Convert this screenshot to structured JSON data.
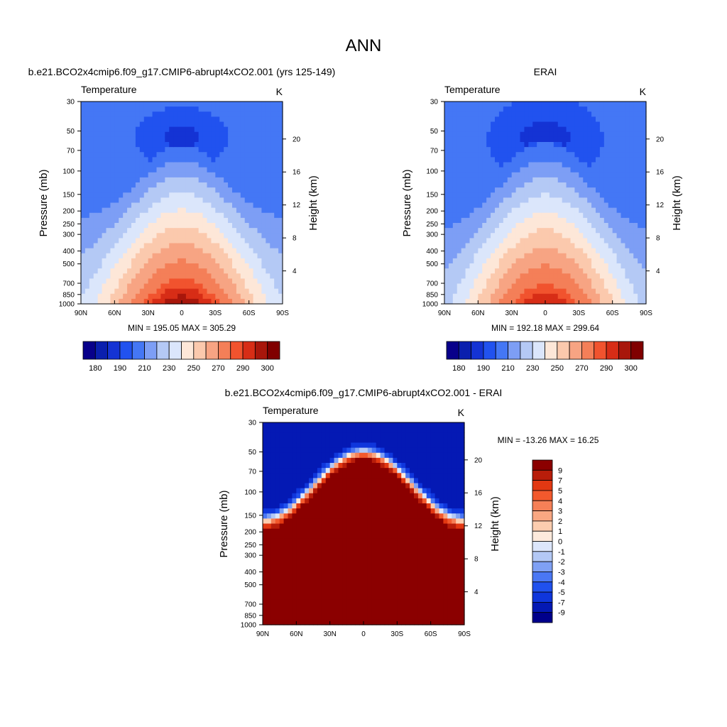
{
  "figure": {
    "title": "ANN"
  },
  "colors": {
    "abs_scale": [
      "#08008a",
      "#0a1fae",
      "#1433d4",
      "#2152ef",
      "#4477f5",
      "#7d9ef5",
      "#b4c9f5",
      "#dbe6fb",
      "#fde7d8",
      "#fbc9ad",
      "#f7a483",
      "#f47f58",
      "#f1532e",
      "#d72d16",
      "#a8160b",
      "#800000"
    ],
    "diff_scale": [
      "#00008b",
      "#0419b4",
      "#0f36dc",
      "#2051ee",
      "#4a77f4",
      "#7fa0f4",
      "#b3c8f5",
      "#dce6fb",
      "#fdeadc",
      "#fccdaf",
      "#f9a782",
      "#f68057",
      "#f3592d",
      "#e23812",
      "#b81d0a",
      "#8b0000"
    ]
  },
  "chart_data": [
    {
      "type": "heatmap",
      "panel": "model",
      "title": "b.e21.BCO2x4cmip6.f09_g17.CMIP6-abrupt4xCO2.001 (yrs 125-149)",
      "subtitle_left": "Temperature",
      "subtitle_right": "K",
      "ylabel": "Pressure (mb)",
      "ylabel_right": "Height (km)",
      "x_ticks": [
        "90N",
        "60N",
        "30N",
        "0",
        "30S",
        "60S",
        "90S"
      ],
      "x_range": [
        90,
        -90
      ],
      "y_ticks": [
        "30",
        "50",
        "70",
        "100",
        "150",
        "200",
        "250",
        "300",
        "400",
        "500",
        "700",
        "850",
        "1000"
      ],
      "y_ticks_right": [
        "20",
        "16",
        "12",
        "8",
        "4"
      ],
      "y_range": [
        1000,
        30
      ],
      "stats": "MIN = 195.05  MAX = 305.29",
      "min": 195.05,
      "max": 305.29,
      "colorbar_labels": [
        "180",
        "190",
        "210",
        "230",
        "250",
        "270",
        "290",
        "300"
      ]
    },
    {
      "type": "heatmap",
      "panel": "obs",
      "title": "ERAI",
      "subtitle_left": "Temperature",
      "subtitle_right": "K",
      "ylabel": "Pressure (mb)",
      "ylabel_right": "Height (km)",
      "x_ticks": [
        "90N",
        "60N",
        "30N",
        "0",
        "30S",
        "60S",
        "90S"
      ],
      "x_range": [
        90,
        -90
      ],
      "y_ticks": [
        "30",
        "50",
        "70",
        "100",
        "150",
        "200",
        "250",
        "300",
        "400",
        "500",
        "700",
        "850",
        "1000"
      ],
      "y_ticks_right": [
        "20",
        "16",
        "12",
        "8",
        "4"
      ],
      "y_range": [
        1000,
        30
      ],
      "stats": "MIN = 192.18  MAX = 299.64",
      "min": 192.18,
      "max": 299.64,
      "colorbar_labels": [
        "180",
        "190",
        "210",
        "230",
        "250",
        "270",
        "290",
        "300"
      ]
    },
    {
      "type": "heatmap",
      "panel": "diff",
      "title": "b.e21.BCO2x4cmip6.f09_g17.CMIP6-abrupt4xCO2.001 - ERAI",
      "subtitle_left": "Temperature",
      "subtitle_right": "K",
      "ylabel": "Pressure (mb)",
      "ylabel_right": "Height (km)",
      "x_ticks": [
        "90N",
        "60N",
        "30N",
        "0",
        "30S",
        "60S",
        "90S"
      ],
      "x_range": [
        90,
        -90
      ],
      "y_ticks": [
        "30",
        "50",
        "70",
        "100",
        "150",
        "200",
        "250",
        "300",
        "400",
        "500",
        "700",
        "850",
        "1000"
      ],
      "y_ticks_right": [
        "20",
        "16",
        "12",
        "8",
        "4"
      ],
      "y_range": [
        1000,
        30
      ],
      "stats": "MIN = -13.26  MAX =  16.25",
      "min": -13.26,
      "max": 16.25,
      "colorbar_labels": [
        "9",
        "7",
        "5",
        "4",
        "3",
        "2",
        "1",
        "0",
        "-1",
        "-2",
        "-3",
        "-4",
        "-5",
        "-7",
        "-9"
      ]
    }
  ]
}
